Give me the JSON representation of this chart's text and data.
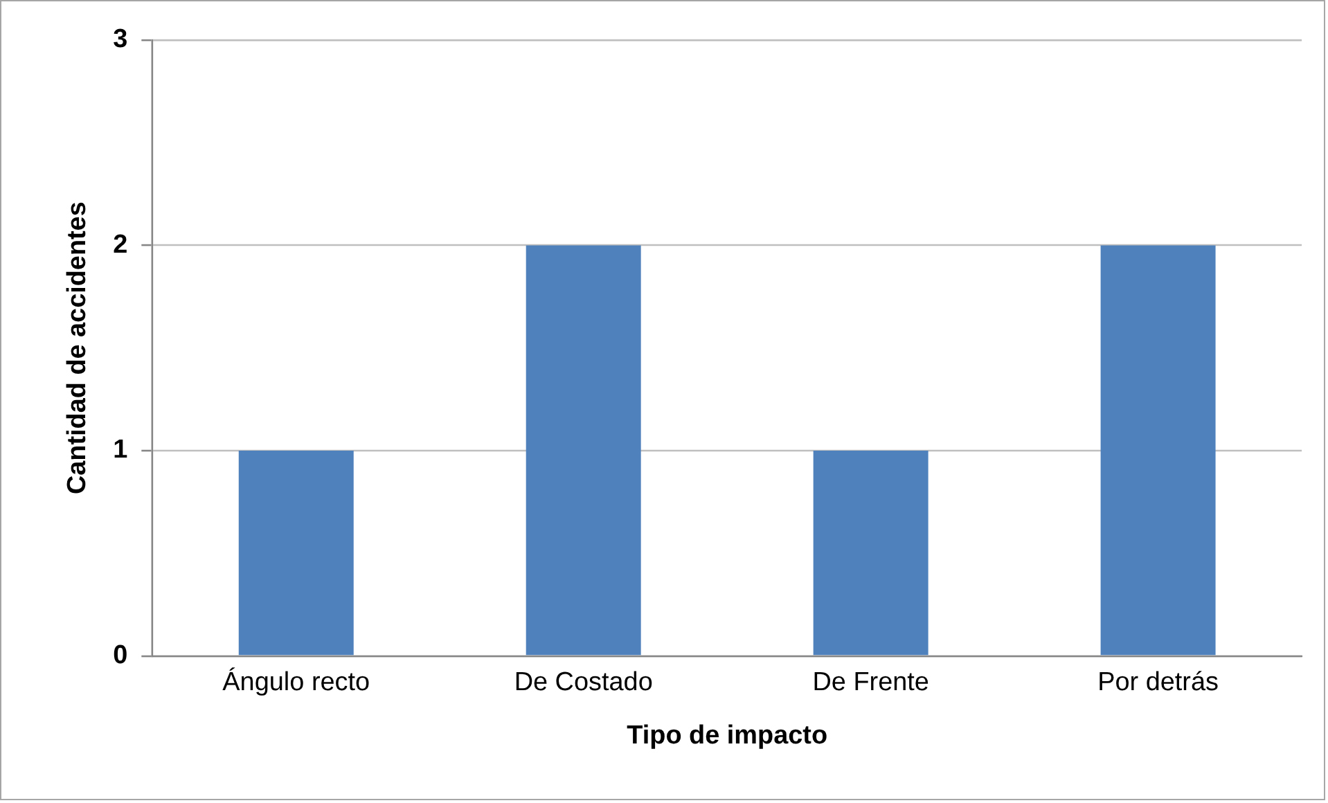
{
  "chart_data": {
    "type": "bar",
    "xlabel": "Tipo de impacto",
    "ylabel": "Cantidad de accidentes",
    "categories": [
      "Ángulo recto",
      "De Costado",
      "De Frente",
      "Por detrás"
    ],
    "values": [
      1,
      2,
      1,
      2
    ],
    "color": "#4f81bd",
    "ylim": [
      0,
      3
    ],
    "yticks": [
      0,
      1,
      2,
      3
    ],
    "grid": "y"
  }
}
